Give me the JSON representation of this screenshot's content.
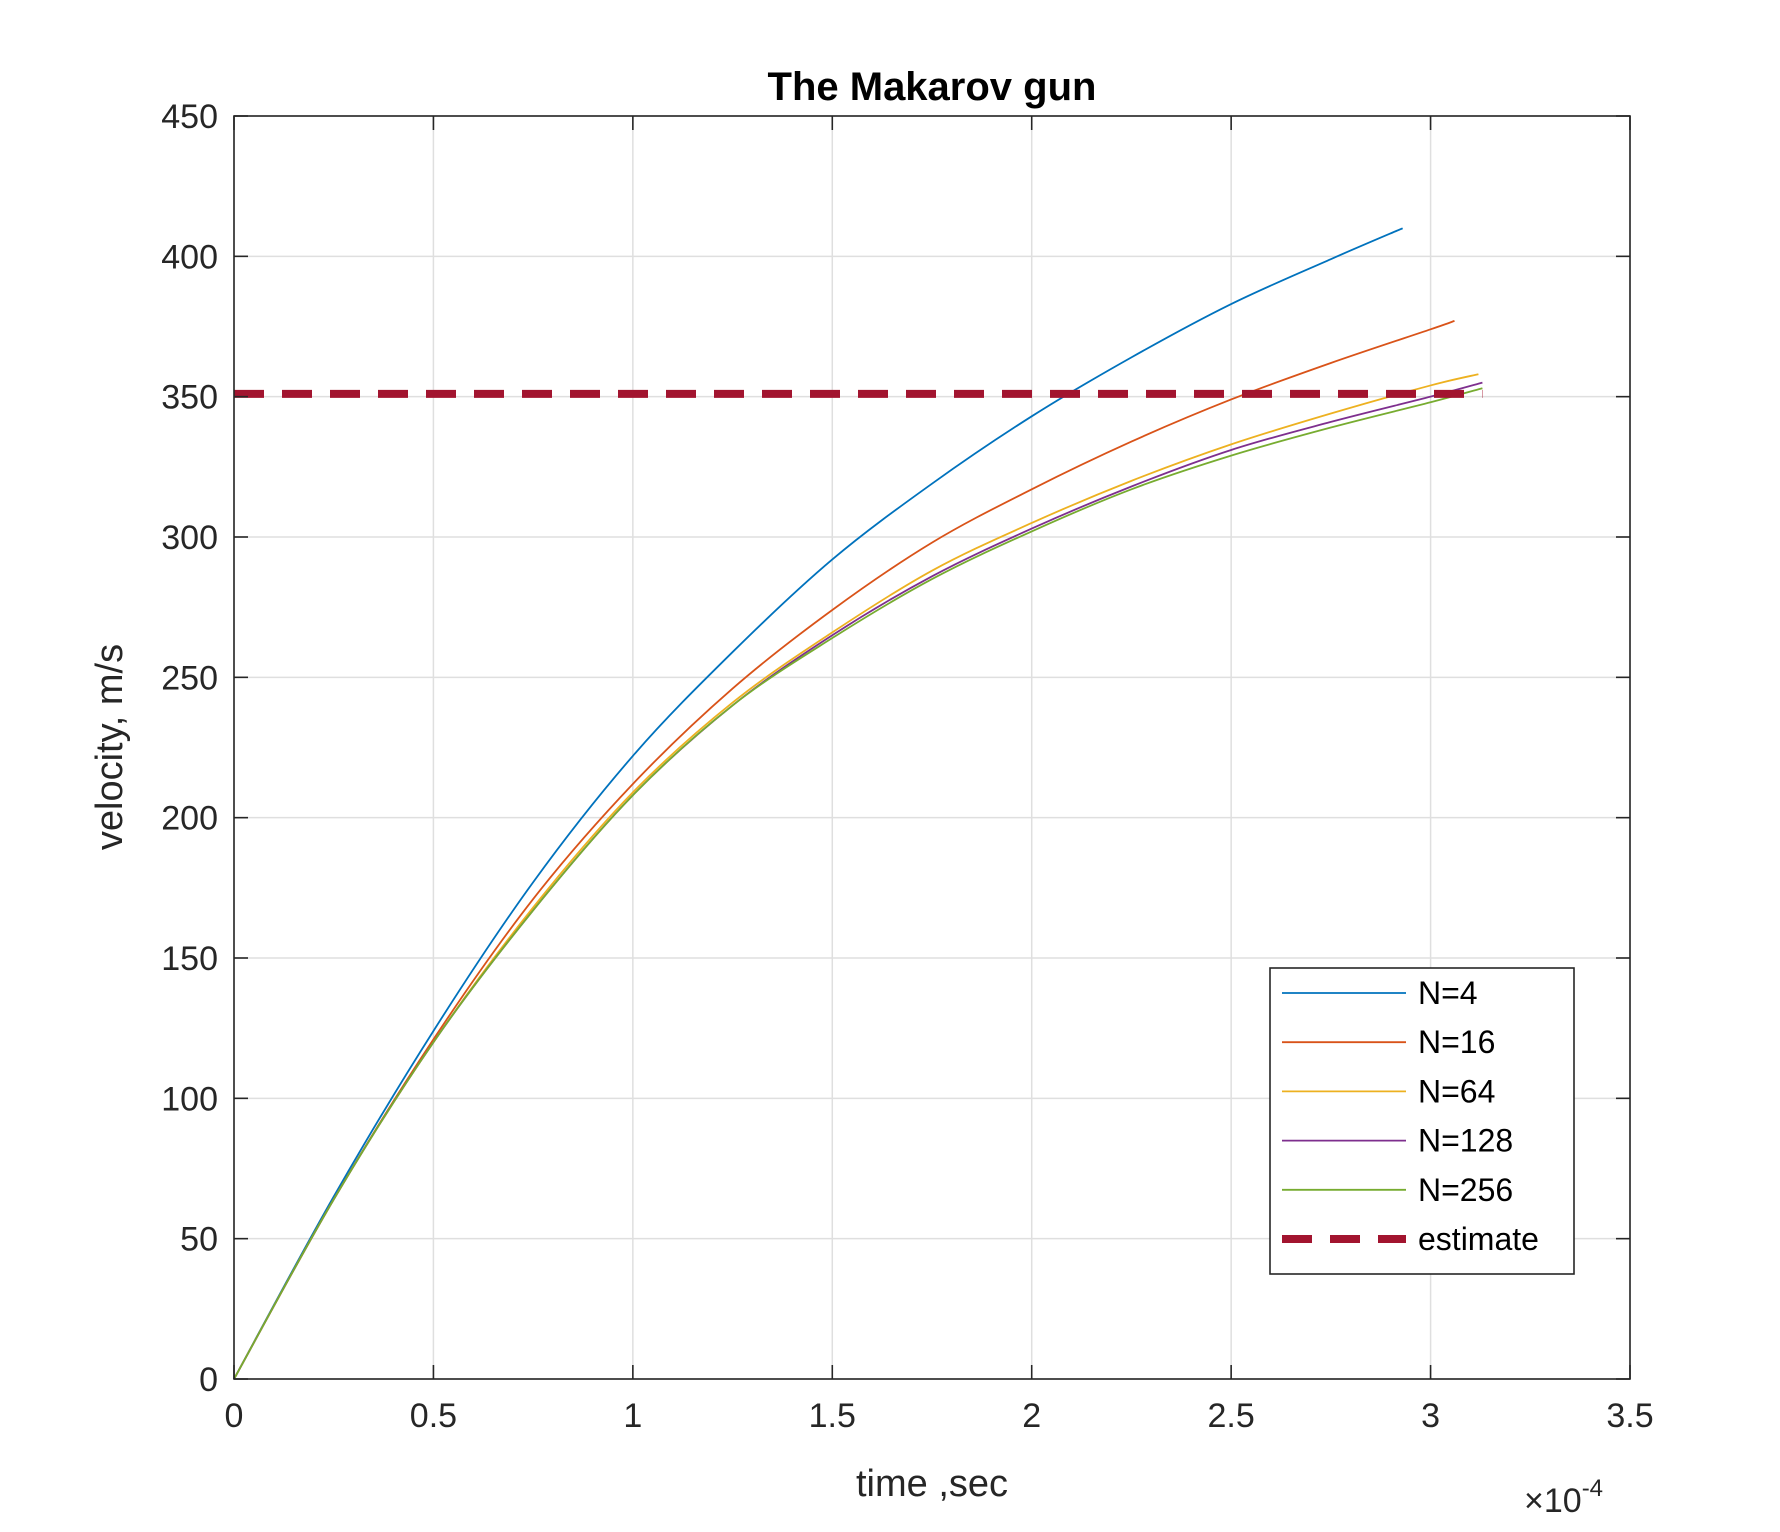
{
  "chart_data": {
    "type": "line",
    "title": "The Makarov gun",
    "xlabel": "time ,sec",
    "ylabel": "velocity, m/s",
    "x_exponent_label": {
      "times": "×",
      "base": "10",
      "power": "-4"
    },
    "xlim": [
      0,
      3.5
    ],
    "ylim": [
      0,
      450
    ],
    "x_scale_factor": 0.0001,
    "xticks": [
      0,
      0.5,
      1,
      1.5,
      2,
      2.5,
      3,
      3.5
    ],
    "xtick_labels": [
      "0",
      "0.5",
      "1",
      "1.5",
      "2",
      "2.5",
      "3",
      "3.5"
    ],
    "yticks": [
      0,
      50,
      100,
      150,
      200,
      250,
      300,
      350,
      400,
      450
    ],
    "ytick_labels": [
      "0",
      "50",
      "100",
      "150",
      "200",
      "250",
      "300",
      "350",
      "400",
      "450"
    ],
    "grid": true,
    "legend_position": "bottom-right",
    "series": [
      {
        "name": "N=4",
        "color": "#0072BD",
        "style": "solid",
        "x": [
          0,
          0.25,
          0.5,
          0.75,
          1.0,
          1.25,
          1.5,
          1.75,
          2.0,
          2.25,
          2.5,
          2.75,
          2.93
        ],
        "y": [
          0,
          65,
          124,
          177,
          222,
          259,
          292,
          319,
          343,
          364,
          383,
          399,
          410
        ]
      },
      {
        "name": "N=16",
        "color": "#D95319",
        "style": "solid",
        "x": [
          0,
          0.25,
          0.5,
          0.75,
          1.0,
          1.25,
          1.5,
          1.75,
          2.0,
          2.25,
          2.5,
          2.75,
          3.0,
          3.06
        ],
        "y": [
          0,
          64,
          121,
          171,
          212,
          246,
          274,
          298,
          317,
          334,
          349,
          362,
          374,
          377
        ]
      },
      {
        "name": "N=64",
        "color": "#EDB120",
        "style": "solid",
        "x": [
          0,
          0.25,
          0.5,
          0.75,
          1.0,
          1.25,
          1.5,
          1.75,
          2.0,
          2.25,
          2.5,
          2.75,
          3.0,
          3.12
        ],
        "y": [
          0,
          64,
          120,
          168,
          209,
          241,
          266,
          288,
          305,
          320,
          333,
          344,
          354,
          358
        ]
      },
      {
        "name": "N=128",
        "color": "#7E2F8E",
        "style": "solid",
        "x": [
          0,
          0.25,
          0.5,
          0.75,
          1.0,
          1.25,
          1.5,
          1.75,
          2.0,
          2.25,
          2.5,
          2.75,
          3.0,
          3.13
        ],
        "y": [
          0,
          64,
          120,
          167,
          208,
          240,
          265,
          286,
          303,
          318,
          331,
          341,
          350,
          355
        ]
      },
      {
        "name": "N=256",
        "color": "#77AC30",
        "style": "solid",
        "x": [
          0,
          0.25,
          0.5,
          0.75,
          1.0,
          1.25,
          1.5,
          1.75,
          2.0,
          2.25,
          2.5,
          2.75,
          3.0,
          3.13
        ],
        "y": [
          0,
          64,
          120,
          167,
          208,
          240,
          264,
          285,
          302,
          317,
          329,
          339,
          348,
          353
        ]
      },
      {
        "name": "estimate",
        "color": "#A2142F",
        "style": "dashed",
        "x": [
          0,
          3.13
        ],
        "y": [
          351,
          351
        ]
      }
    ]
  }
}
